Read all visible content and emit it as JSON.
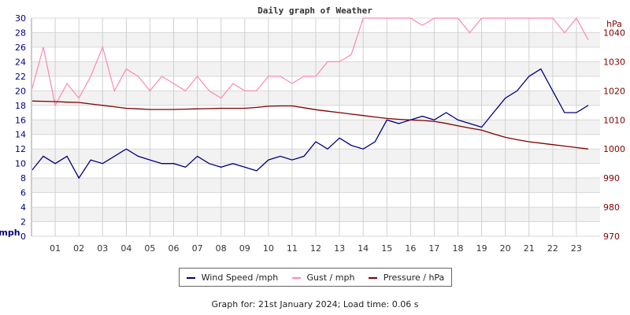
{
  "chart_data": {
    "type": "line",
    "title": "Daily graph of Weather",
    "x_ticks": [
      "01",
      "02",
      "03",
      "04",
      "05",
      "06",
      "07",
      "08",
      "09",
      "10",
      "11",
      "12",
      "13",
      "14",
      "15",
      "16",
      "17",
      "18",
      "19",
      "20",
      "21",
      "22",
      "23"
    ],
    "xlim": [
      0,
      24
    ],
    "y_left": {
      "label": "mph",
      "lim": [
        0,
        30
      ],
      "ticks": [
        0,
        2,
        4,
        6,
        8,
        10,
        12,
        14,
        16,
        18,
        20,
        22,
        24,
        26,
        28,
        30
      ],
      "color": "#000080"
    },
    "y_right": {
      "label": "hPa",
      "lim": [
        970,
        1045
      ],
      "ticks": [
        970,
        980,
        990,
        1000,
        1010,
        1020,
        1030,
        1040
      ],
      "color": "#800000"
    },
    "grid": true,
    "x": [
      0,
      0.5,
      1,
      1.5,
      2,
      2.5,
      3,
      3.5,
      4,
      4.5,
      5,
      5.5,
      6,
      6.5,
      7,
      7.5,
      8,
      8.5,
      9,
      9.5,
      10,
      10.5,
      11,
      11.5,
      12,
      12.5,
      13,
      13.5,
      14,
      14.5,
      15,
      15.5,
      16,
      16.5,
      17,
      17.5,
      18,
      18.5,
      19,
      19.5,
      20,
      20.5,
      21,
      21.5,
      22,
      22.5,
      23,
      23.5
    ],
    "series": [
      {
        "name": "Wind Speed /mph",
        "color": "#000080",
        "axis": "left",
        "values": [
          9,
          11,
          10,
          11,
          8,
          10.5,
          10,
          11,
          12,
          11,
          10.5,
          10,
          10,
          9.5,
          11,
          10,
          9.5,
          10,
          9.5,
          9,
          10.5,
          11,
          10.5,
          11,
          13,
          12,
          13.5,
          12.5,
          12,
          13,
          16,
          15.5,
          16,
          16.5,
          16,
          17,
          16,
          15.5,
          15,
          17,
          19,
          20,
          22,
          23,
          20,
          17,
          17,
          18
        ]
      },
      {
        "name": "Gust / mph",
        "color": "#ff88aa",
        "axis": "left",
        "values": [
          20,
          26,
          18,
          21,
          19,
          22,
          26,
          20,
          23,
          22,
          20,
          22,
          21,
          20,
          22,
          20,
          19,
          21,
          20,
          20,
          22,
          22,
          21,
          22,
          22,
          24,
          24,
          25,
          30,
          30,
          30,
          30,
          30,
          29,
          30,
          30,
          30,
          28,
          30,
          30,
          30,
          30,
          30,
          30,
          30,
          28,
          30,
          27
        ]
      },
      {
        "name": "Pressure / hPa",
        "color": "#800000",
        "axis": "right",
        "values": [
          1016.5,
          1016.4,
          1016.3,
          1016.1,
          1016,
          1015.5,
          1015,
          1014.5,
          1014,
          1013.8,
          1013.6,
          1013.6,
          1013.6,
          1013.7,
          1013.8,
          1013.9,
          1014,
          1014,
          1014,
          1014.3,
          1014.7,
          1014.8,
          1014.8,
          1014.2,
          1013.5,
          1013,
          1012.5,
          1012,
          1011.5,
          1011,
          1010.5,
          1010.2,
          1010,
          1009.8,
          1009.5,
          1008.8,
          1008,
          1007.2,
          1006.5,
          1005.2,
          1004,
          1003.2,
          1002.5,
          1002,
          1001.5,
          1001,
          1000.5,
          1000
        ]
      }
    ],
    "legend_position": "bottom"
  },
  "footer": "Graph for: 21st January 2024; Load time: 0.06 s"
}
